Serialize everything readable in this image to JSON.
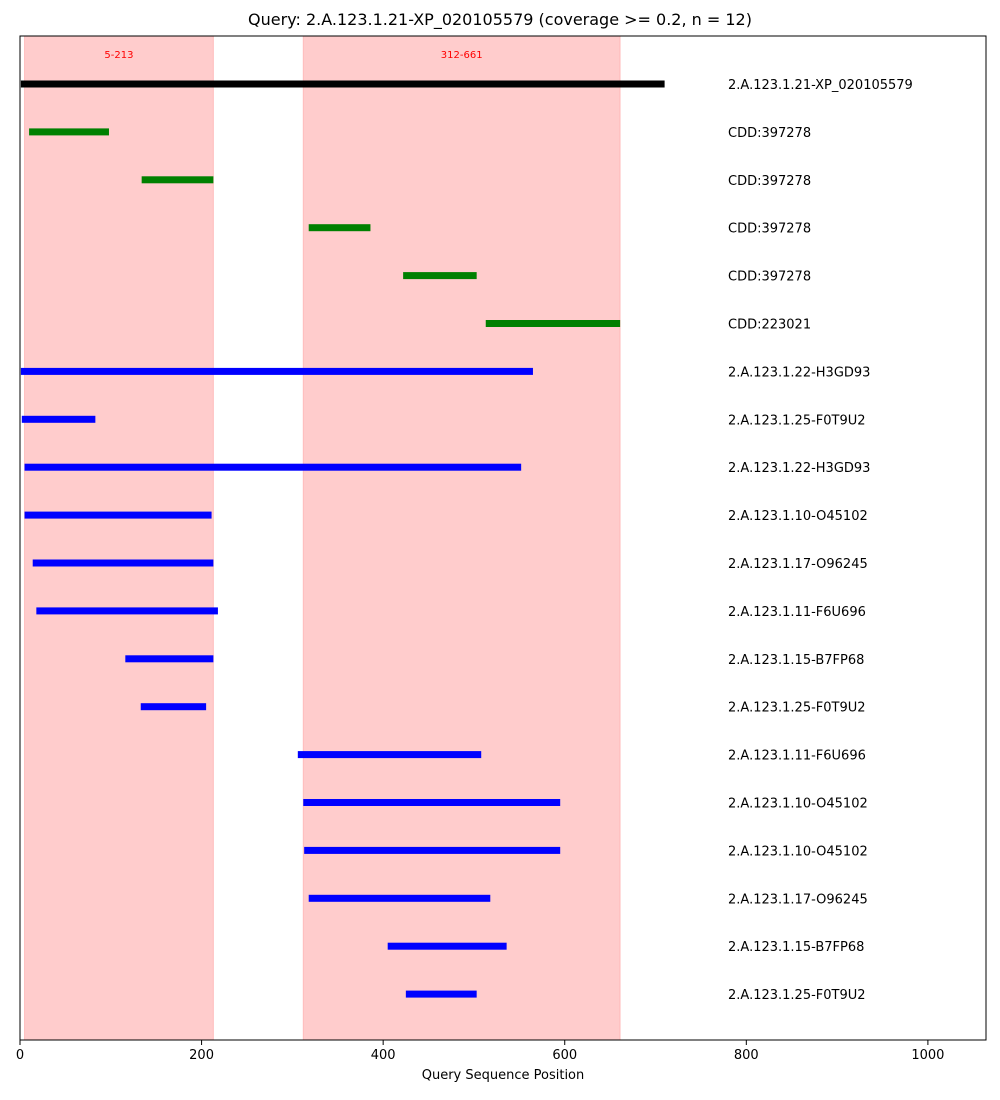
{
  "chart_data": {
    "type": "bar",
    "title": "Query: 2.A.123.1.21-XP_020105579 (coverage >= 0.2, n = 12)",
    "xlabel": "Query Sequence Position",
    "ylabel": "",
    "xlim": [
      0,
      1064
    ],
    "xticks": [
      0,
      200,
      400,
      600,
      800,
      1000
    ],
    "grid": false,
    "regions": [
      {
        "start": 5,
        "end": 213,
        "label": "5-213",
        "color": "#ff9999"
      },
      {
        "start": 312,
        "end": 661,
        "label": "312-661",
        "color": "#ff9999"
      }
    ],
    "series": [
      {
        "label": "2.A.123.1.21-XP_020105579",
        "start": 1,
        "end": 710,
        "color": "#000000"
      },
      {
        "label": "CDD:397278",
        "start": 10,
        "end": 98,
        "color": "#008000"
      },
      {
        "label": "CDD:397278",
        "start": 134,
        "end": 213,
        "color": "#008000"
      },
      {
        "label": "CDD:397278",
        "start": 318,
        "end": 386,
        "color": "#008000"
      },
      {
        "label": "CDD:397278",
        "start": 422,
        "end": 503,
        "color": "#008000"
      },
      {
        "label": "CDD:223021",
        "start": 513,
        "end": 661,
        "color": "#008000"
      },
      {
        "label": "2.A.123.1.22-H3GD93",
        "start": 1,
        "end": 565,
        "color": "#0000ff"
      },
      {
        "label": "2.A.123.1.25-F0T9U2",
        "start": 2,
        "end": 83,
        "color": "#0000ff"
      },
      {
        "label": "2.A.123.1.22-H3GD93",
        "start": 5,
        "end": 552,
        "color": "#0000ff"
      },
      {
        "label": "2.A.123.1.10-O45102",
        "start": 5,
        "end": 211,
        "color": "#0000ff"
      },
      {
        "label": "2.A.123.1.17-O96245",
        "start": 14,
        "end": 213,
        "color": "#0000ff"
      },
      {
        "label": "2.A.123.1.11-F6U696",
        "start": 18,
        "end": 218,
        "color": "#0000ff"
      },
      {
        "label": "2.A.123.1.15-B7FP68",
        "start": 116,
        "end": 213,
        "color": "#0000ff"
      },
      {
        "label": "2.A.123.1.25-F0T9U2",
        "start": 133,
        "end": 205,
        "color": "#0000ff"
      },
      {
        "label": "2.A.123.1.11-F6U696",
        "start": 306,
        "end": 508,
        "color": "#0000ff"
      },
      {
        "label": "2.A.123.1.10-O45102",
        "start": 312,
        "end": 595,
        "color": "#0000ff"
      },
      {
        "label": "2.A.123.1.10-O45102",
        "start": 313,
        "end": 595,
        "color": "#0000ff"
      },
      {
        "label": "2.A.123.1.17-O96245",
        "start": 318,
        "end": 518,
        "color": "#0000ff"
      },
      {
        "label": "2.A.123.1.15-B7FP68",
        "start": 405,
        "end": 536,
        "color": "#0000ff"
      },
      {
        "label": "2.A.123.1.25-F0T9U2",
        "start": 425,
        "end": 503,
        "color": "#0000ff"
      }
    ]
  }
}
